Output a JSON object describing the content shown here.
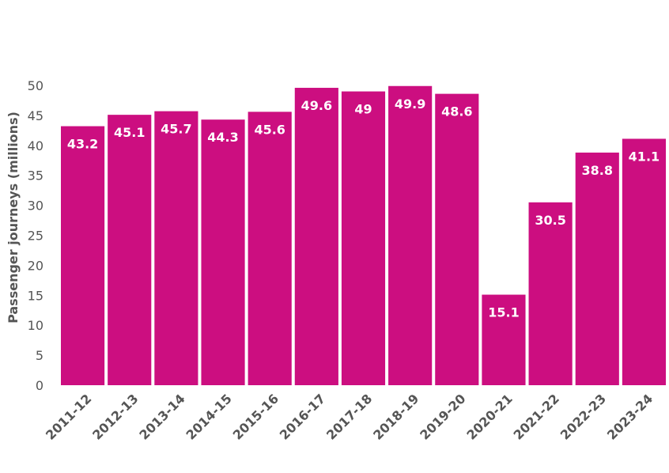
{
  "chart_data": {
    "type": "bar",
    "title": "",
    "xlabel": "",
    "ylabel": "Passenger journeys (millions)",
    "ylim": [
      0,
      50
    ],
    "yticks": [
      0,
      5,
      10,
      15,
      20,
      25,
      30,
      35,
      40,
      45,
      50
    ],
    "grid": false,
    "legend": "none",
    "categories": [
      "2011-12",
      "2012-13",
      "2013-14",
      "2014-15",
      "2015-16",
      "2016-17",
      "2017-18",
      "2018-19",
      "2019-20",
      "2020-21",
      "2021-22",
      "2022-23",
      "2023-24"
    ],
    "values": [
      43.2,
      45.1,
      45.7,
      44.3,
      45.6,
      49.6,
      49,
      49.9,
      48.6,
      15.1,
      30.5,
      38.8,
      41.1
    ],
    "data_labels": [
      "43.2",
      "45.1",
      "45.7",
      "44.3",
      "45.6",
      "49.6",
      "49",
      "49.9",
      "48.6",
      "15.1",
      "30.5",
      "38.8",
      "41.1"
    ],
    "colors": {
      "bar": "#cc0e80",
      "axis_text": "#555555",
      "data_label": "#ffffff"
    }
  }
}
